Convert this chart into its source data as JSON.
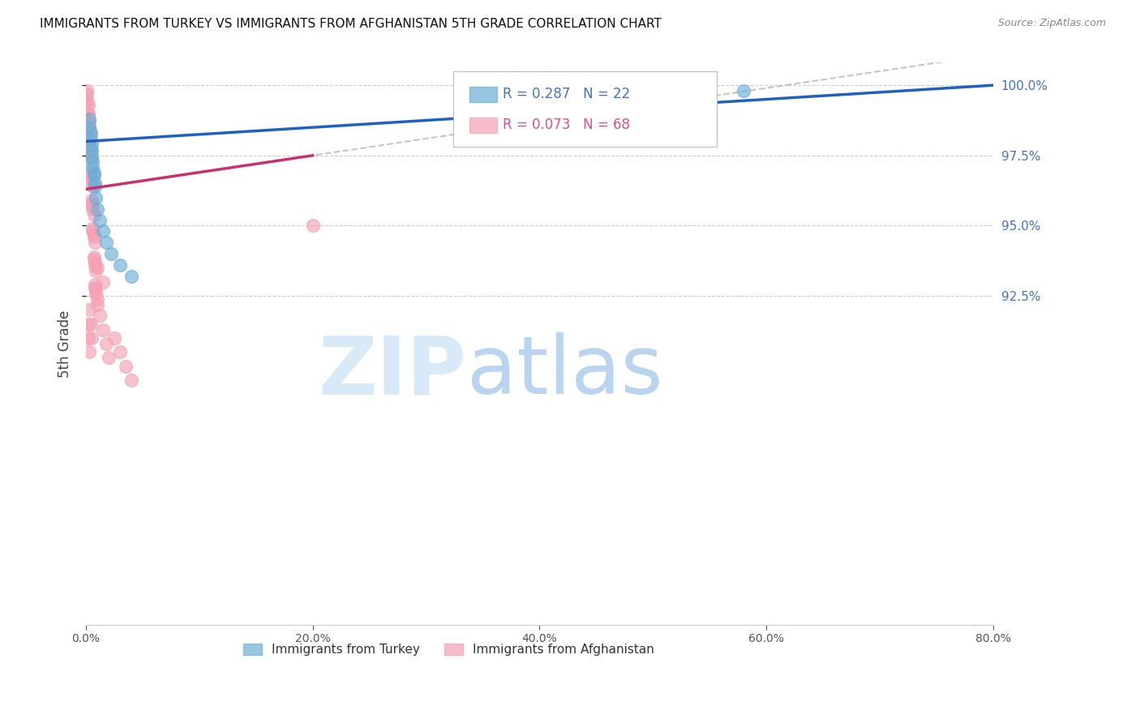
{
  "title": "IMMIGRANTS FROM TURKEY VS IMMIGRANTS FROM AFGHANISTAN 5TH GRADE CORRELATION CHART",
  "source": "Source: ZipAtlas.com",
  "ylabel": "5th Grade",
  "right_ytick_labels": [
    "100.0%",
    "97.5%",
    "95.0%",
    "92.5%"
  ],
  "right_ytick_values": [
    1.0,
    0.975,
    0.95,
    0.925
  ],
  "xlim": [
    0.0,
    0.8
  ],
  "ylim": [
    0.808,
    1.008
  ],
  "xticklabels": [
    "0.0%",
    "20.0%",
    "40.0%",
    "60.0%",
    "80.0%"
  ],
  "xtick_values": [
    0.0,
    0.2,
    0.4,
    0.6,
    0.8
  ],
  "turkey_color": "#6baed6",
  "afghanistan_color": "#f4a0b5",
  "turkey_R": 0.287,
  "turkey_N": 22,
  "afghanistan_R": 0.073,
  "afghanistan_N": 68,
  "turkey_trend_color": "#2060c0",
  "afghanistan_trend_color": "#c83070",
  "dashed_color": "#bbbbbb",
  "watermark_zip": "ZIP",
  "watermark_atlas": "atlas",
  "watermark_color": "#d0e8f8",
  "background_color": "#ffffff",
  "grid_color": "#cccccc",
  "title_fontsize": 11,
  "legend_box_turkey_color": "#4472c4",
  "legend_box_afghanistan_color": "#e05080"
}
